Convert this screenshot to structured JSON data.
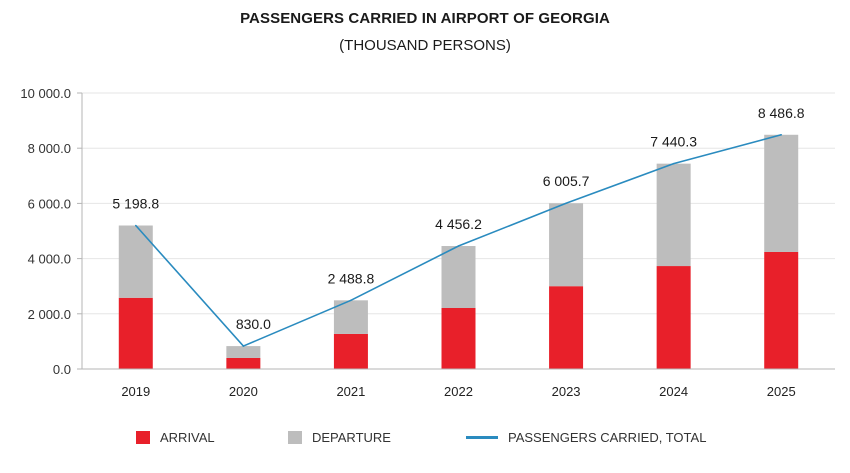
{
  "chart_data": {
    "type": "bar",
    "title": "PASSENGERS CARRIED IN AIRPORT OF GEORGIA",
    "subtitle": "(THOUSAND PERSONS)",
    "xlabel": "",
    "ylabel": "",
    "ylim": [
      0,
      10000
    ],
    "y_ticks": [
      0,
      2000,
      4000,
      6000,
      8000,
      10000
    ],
    "y_tick_labels": [
      "0.0",
      "2 000.0",
      "4 000.0",
      "6 000.0",
      "8 000.0",
      "10 000.0"
    ],
    "grid": true,
    "stacked": true,
    "categories": [
      "2019",
      "2020",
      "2021",
      "2022",
      "2023",
      "2024",
      "2025"
    ],
    "series": [
      {
        "name": "ARRIVAL",
        "type": "bar",
        "color": "#e8202a",
        "values": [
          2580,
          400,
          1270,
          2210,
          3000,
          3730,
          4240
        ]
      },
      {
        "name": "DEPARTURE",
        "type": "bar",
        "color": "#bdbdbd",
        "values": [
          2618.8,
          430,
          1218.8,
          2246.2,
          3005.7,
          3710.3,
          4246.8
        ]
      },
      {
        "name": "PASSENGERS CARRIED, TOTAL",
        "type": "line",
        "color": "#2a8bbf",
        "values": [
          5198.8,
          830.0,
          2488.8,
          4456.2,
          6005.7,
          7440.3,
          8486.8
        ]
      }
    ],
    "data_labels": [
      "5 198.8",
      "830.0",
      "2 488.8",
      "4 456.2",
      "6 005.7",
      "7 440.3",
      "8 486.8"
    ],
    "legend": {
      "placement": "bottom",
      "entries": [
        "ARRIVAL",
        "DEPARTURE",
        "PASSENGERS CARRIED, TOTAL"
      ]
    }
  }
}
